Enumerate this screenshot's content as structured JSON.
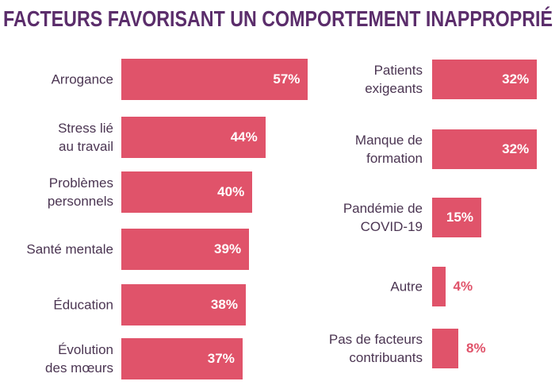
{
  "title": "FACTEURS FAVORISANT UN COMPORTEMENT INAPPROPRIÉ",
  "chart_data": [
    {
      "type": "bar",
      "orientation": "horizontal",
      "color": "#e0536a",
      "categories": [
        "Arrogance",
        "Stress lié\nau travail",
        "Problèmes\npersonnels",
        "Santé mentale",
        "Éducation",
        "Évolution\ndes mœurs"
      ],
      "values": [
        57,
        44,
        40,
        39,
        38,
        37
      ],
      "value_labels": [
        "57%",
        "44%",
        "40%",
        "39%",
        "38%",
        "37%"
      ]
    },
    {
      "type": "bar",
      "orientation": "horizontal",
      "color": "#e0536a",
      "categories": [
        "Patients\nexigeants",
        "Manque de\nformation",
        "Pandémie de\nCOVID-19",
        "Autre",
        "Pas de facteurs\ncontribuants"
      ],
      "values": [
        32,
        32,
        15,
        4,
        8
      ],
      "value_labels": [
        "32%",
        "32%",
        "15%",
        "4%",
        "8%"
      ]
    }
  ]
}
